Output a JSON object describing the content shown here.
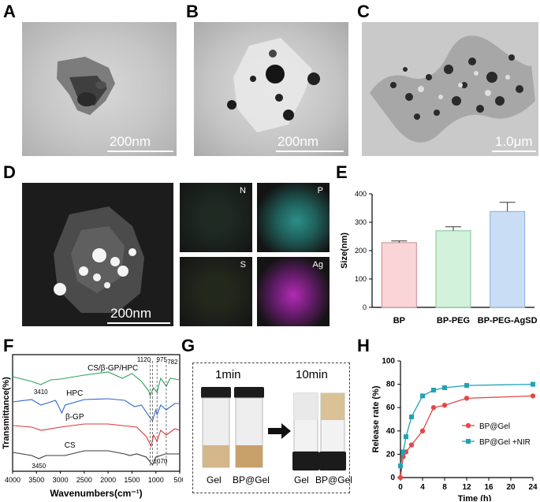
{
  "panels": {
    "A": {
      "label": "A",
      "scale": "200nm"
    },
    "B": {
      "label": "B",
      "scale": "200nm"
    },
    "C": {
      "label": "C",
      "scale": "1.0μm"
    },
    "D": {
      "label": "D",
      "scale": "200nm",
      "maps": [
        "N",
        "P",
        "S",
        "Ag"
      ]
    },
    "E": {
      "label": "E"
    },
    "F": {
      "label": "F"
    },
    "G": {
      "label": "G",
      "time1": "1min",
      "time2": "10min",
      "vials": [
        "Gel",
        "BP@Gel",
        "Gel",
        "BP@Gel"
      ]
    },
    "H": {
      "label": "H"
    }
  },
  "colors": {
    "bp": "#f9d5d8",
    "bppeg": "#d3f2dc",
    "agsd": "#c9ddf4",
    "f_green": "#2fa35b",
    "f_blue": "#2d69c9",
    "f_red": "#d9393a",
    "f_black": "#3a3a3a",
    "h_red": "#e24a4a",
    "h_teal": "#1fa3b4"
  },
  "chart_data": [
    {
      "panel": "E",
      "type": "bar",
      "categories": [
        "BP",
        "BP-PEG",
        "BP-PEG-AgSD"
      ],
      "values": [
        228,
        270,
        338
      ],
      "errors": [
        6,
        14,
        32
      ],
      "ylabel": "Size(nm)",
      "xlabel": "",
      "ylim": [
        0,
        400
      ],
      "yticks": [
        "0",
        "100",
        "200",
        "300",
        "400"
      ]
    },
    {
      "panel": "F",
      "type": "line",
      "xlabel": "Wavenumbers(cm⁻¹)",
      "ylabel": "Transmittance(%)",
      "xlim": [
        4000,
        500
      ],
      "xticks": [
        "4000",
        "3500",
        "3000",
        "2500",
        "2000",
        "1500",
        "1000",
        "500"
      ],
      "series": [
        {
          "name": "CS/β-GP/HPC"
        },
        {
          "name": "HPC"
        },
        {
          "name": "β-GP"
        },
        {
          "name": "CS"
        }
      ],
      "annotations": [
        "3410",
        "1120",
        "975",
        "782",
        "3450",
        "1070"
      ]
    },
    {
      "panel": "H",
      "type": "line",
      "xlabel": "Time (h)",
      "ylabel": "Release rate (%)",
      "xlim": [
        0,
        24
      ],
      "ylim": [
        0,
        100
      ],
      "xticks": [
        "0",
        "4",
        "8",
        "12",
        "16",
        "20",
        "24"
      ],
      "yticks": [
        "0",
        "20",
        "40",
        "60",
        "80",
        "100"
      ],
      "series": [
        {
          "name": "BP@Gel",
          "x": [
            0,
            0.5,
            1,
            2,
            4,
            6,
            8,
            12,
            24
          ],
          "y": [
            0,
            18,
            22,
            28,
            40,
            60,
            62,
            68,
            70
          ]
        },
        {
          "name": "BP@Gel +NIR",
          "x": [
            0,
            0.5,
            1,
            2,
            4,
            6,
            8,
            12,
            24
          ],
          "y": [
            10,
            22,
            35,
            52,
            70,
            75,
            77,
            79,
            80
          ]
        }
      ]
    }
  ]
}
